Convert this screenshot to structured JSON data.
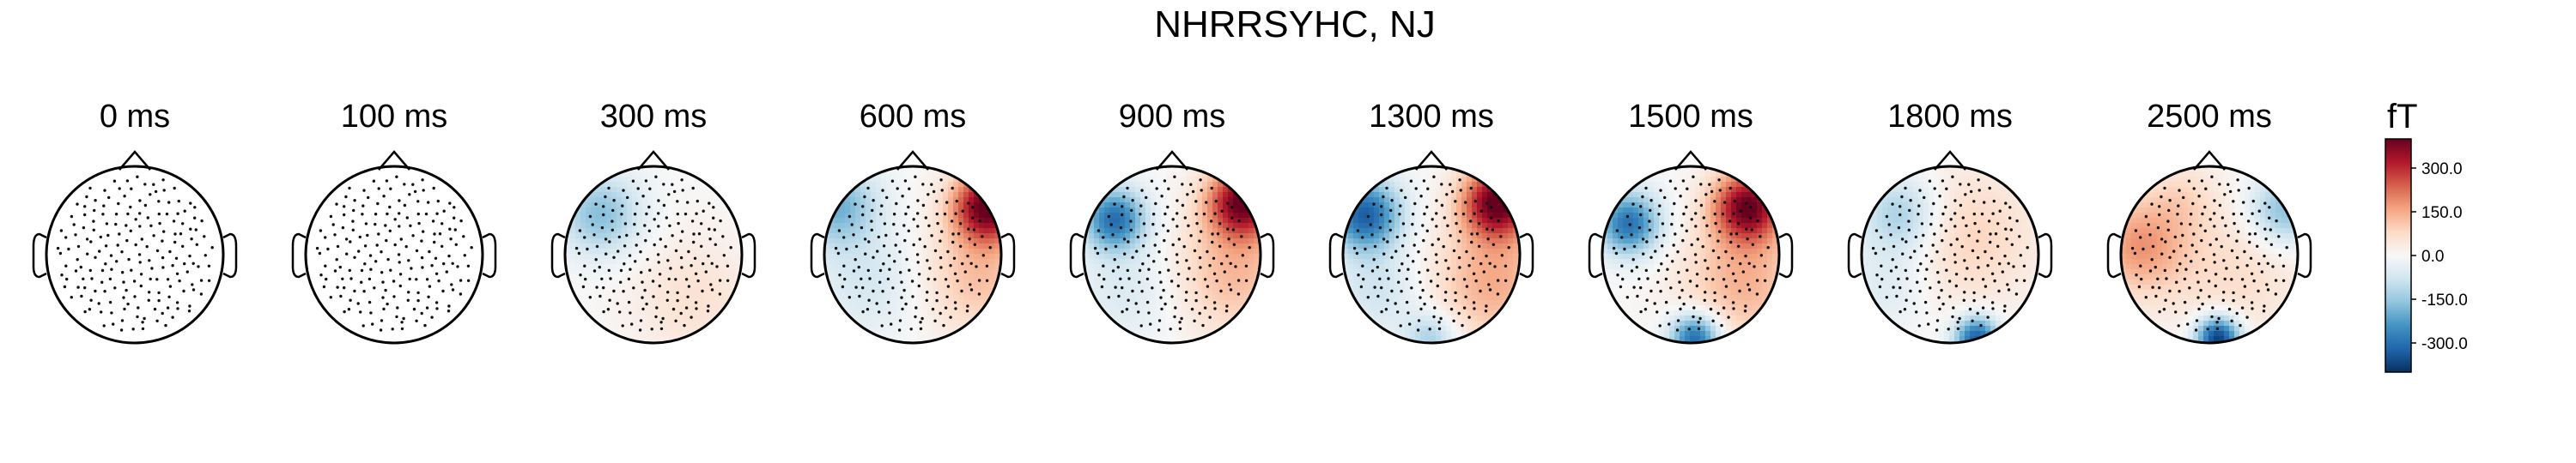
{
  "chart_data": {
    "type": "topomap",
    "title": "NHRRSYHC, NJ",
    "unit": "fT",
    "colorbar": {
      "ticks": [
        300.0,
        150.0,
        0.0,
        -150.0,
        -300.0
      ],
      "tick_labels": [
        "300.0",
        "150.0",
        "0.0",
        "-150.0",
        "-300.0"
      ],
      "range": [
        -400,
        400
      ],
      "colormap": [
        "#053061",
        "#2166ac",
        "#4393c3",
        "#92c5de",
        "#d1e5f0",
        "#f7f7f7",
        "#fddbc7",
        "#f4a582",
        "#d6604d",
        "#b2182b",
        "#67001f"
      ]
    },
    "maps": [
      {
        "time_ms": 0,
        "label": "0 ms",
        "peak_fT": 0,
        "sources": []
      },
      {
        "time_ms": 100,
        "label": "100 ms",
        "peak_fT": 0,
        "sources": []
      },
      {
        "time_ms": 300,
        "label": "300 ms",
        "peak_fT": -170,
        "sources": [
          {
            "u": -0.6,
            "v": -0.45,
            "s": 0.45,
            "a": -170
          },
          {
            "u": 0.45,
            "v": 0.5,
            "s": 0.7,
            "a": 60
          }
        ]
      },
      {
        "time_ms": 600,
        "label": "600 ms",
        "peak_fT": 400,
        "sources": [
          {
            "u": -0.85,
            "v": -0.55,
            "s": 0.45,
            "a": -190
          },
          {
            "u": 0.85,
            "v": -0.55,
            "s": 0.4,
            "a": 400
          },
          {
            "u": 0.75,
            "v": 0.25,
            "s": 0.65,
            "a": 120
          },
          {
            "u": -0.5,
            "v": 0.3,
            "s": 0.6,
            "a": -70
          }
        ]
      },
      {
        "time_ms": 900,
        "label": "900 ms",
        "peak_fT": 380,
        "sources": [
          {
            "u": -0.65,
            "v": -0.4,
            "s": 0.35,
            "a": -300
          },
          {
            "u": 0.8,
            "v": -0.6,
            "s": 0.4,
            "a": 380
          },
          {
            "u": 0.7,
            "v": 0.2,
            "s": 0.7,
            "a": 130
          },
          {
            "u": -0.5,
            "v": 0.4,
            "s": 0.6,
            "a": -60
          }
        ]
      },
      {
        "time_ms": 1300,
        "label": "1300 ms",
        "peak_fT": 400,
        "sources": [
          {
            "u": -0.75,
            "v": -0.45,
            "s": 0.4,
            "a": -330
          },
          {
            "u": 0.75,
            "v": -0.6,
            "s": 0.4,
            "a": 400
          },
          {
            "u": 0.7,
            "v": 0.3,
            "s": 0.7,
            "a": 150
          },
          {
            "u": 0.0,
            "v": 0.95,
            "s": 0.3,
            "a": -140
          },
          {
            "u": -0.6,
            "v": 0.4,
            "s": 0.5,
            "a": -80
          }
        ]
      },
      {
        "time_ms": 1500,
        "label": "1500 ms",
        "peak_fT": 380,
        "sources": [
          {
            "u": -0.7,
            "v": -0.35,
            "s": 0.35,
            "a": -300
          },
          {
            "u": 0.65,
            "v": -0.55,
            "s": 0.4,
            "a": 380
          },
          {
            "u": 0.6,
            "v": 0.3,
            "s": 0.7,
            "a": 140
          },
          {
            "u": 0.05,
            "v": 0.95,
            "s": 0.28,
            "a": -330
          }
        ]
      },
      {
        "time_ms": 1800,
        "label": "1800 ms",
        "peak_fT": -340,
        "sources": [
          {
            "u": -0.55,
            "v": -0.45,
            "s": 0.45,
            "a": -150
          },
          {
            "u": 0.2,
            "v": -0.2,
            "s": 0.8,
            "a": 90
          },
          {
            "u": 0.3,
            "v": 0.95,
            "s": 0.25,
            "a": -340
          },
          {
            "u": -0.7,
            "v": 0.35,
            "s": 0.5,
            "a": -60
          }
        ]
      },
      {
        "time_ms": 2500,
        "label": "2500 ms",
        "peak_fT": -400,
        "sources": [
          {
            "u": 0.1,
            "v": 0.95,
            "s": 0.25,
            "a": -400
          },
          {
            "u": -0.8,
            "v": -0.1,
            "s": 0.55,
            "a": 170
          },
          {
            "u": 0.85,
            "v": -0.5,
            "s": 0.4,
            "a": -180
          },
          {
            "u": 0.3,
            "v": 0.2,
            "s": 0.8,
            "a": 70
          },
          {
            "u": -0.3,
            "v": -0.65,
            "s": 0.4,
            "a": 60
          }
        ]
      }
    ]
  }
}
